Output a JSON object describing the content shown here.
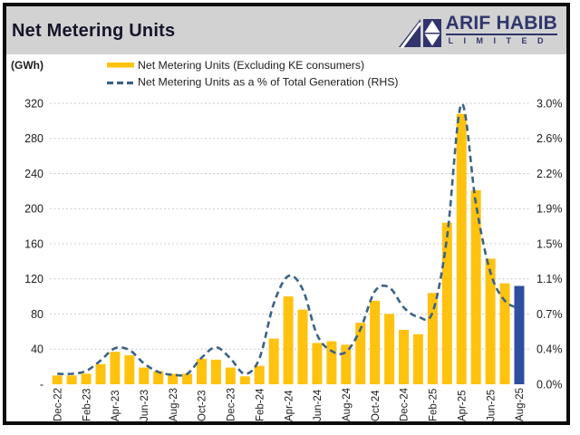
{
  "header": {
    "title": "Net Metering Units"
  },
  "logo": {
    "name": "ARIF HABIB",
    "subtitle": "L I M I T E D"
  },
  "colors": {
    "bar": "#FFC20E",
    "bar_highlight": "#2E4EA1",
    "line": "#3B6286",
    "grid": "#C9C9C9",
    "header_bg": "#D2D2D2",
    "logo_navy": "#31356B",
    "text": "#1D1D1D"
  },
  "chart_data": {
    "type": "bar",
    "title": "Net Metering Units",
    "x_months": [
      "Dec-22",
      "Jan-23",
      "Feb-23",
      "Mar-23",
      "Apr-23",
      "May-23",
      "Jun-23",
      "Jul-23",
      "Aug-23",
      "Sep-23",
      "Oct-23",
      "Nov-23",
      "Dec-23",
      "Jan-24",
      "Feb-24",
      "Mar-24",
      "Apr-24",
      "May-24",
      "Jun-24",
      "Jul-24",
      "Aug-24",
      "Sep-24",
      "Oct-24",
      "Nov-24",
      "Dec-24",
      "Jan-25",
      "Feb-25",
      "Mar-25",
      "Apr-25",
      "May-25",
      "Jun-25",
      "Jul-25",
      "Aug-25"
    ],
    "x_tick_every": 2,
    "series": [
      {
        "name": "Net Metering Units (Excluding KE consumers)",
        "type": "bar",
        "axis": "left",
        "unit": "GWh",
        "values": [
          10,
          10,
          12,
          23,
          37,
          33,
          19,
          15,
          12,
          12,
          29,
          28,
          19,
          9,
          21,
          52,
          100,
          85,
          47,
          49,
          45,
          70,
          95,
          80,
          62,
          57,
          104,
          184,
          308,
          221,
          143,
          115,
          112
        ]
      },
      {
        "name": "Net Metering Units as a % of Total Generation (RHS)",
        "type": "line",
        "axis": "right",
        "unit": "%",
        "values": [
          0.11,
          0.11,
          0.14,
          0.25,
          0.38,
          0.36,
          0.22,
          0.13,
          0.1,
          0.11,
          0.28,
          0.39,
          0.27,
          0.11,
          0.27,
          0.85,
          1.14,
          1.0,
          0.52,
          0.35,
          0.34,
          0.58,
          0.98,
          1.02,
          0.81,
          0.71,
          0.76,
          1.55,
          2.95,
          1.9,
          1.18,
          0.88,
          0.8
        ]
      }
    ],
    "left_axis": {
      "label": "(GWh)",
      "ticks": [
        "-",
        "40",
        "80",
        "120",
        "160",
        "200",
        "240",
        "280",
        "320"
      ],
      "tick_step": 40,
      "max": 320
    },
    "right_axis": {
      "ticks": [
        "0.0%",
        "0.4%",
        "0.7%",
        "1.1%",
        "1.5%",
        "1.9%",
        "2.2%",
        "2.6%",
        "3.0%"
      ],
      "max": 2.96
    },
    "grid": "dotted-horizontal",
    "legend_position": "top",
    "highlight_last_bar": true
  }
}
